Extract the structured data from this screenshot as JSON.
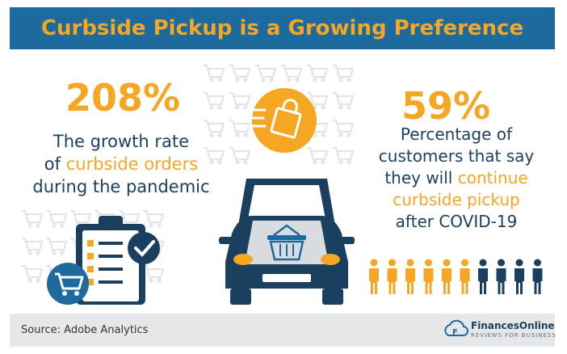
{
  "header": {
    "title": "Curbside Pickup is a Growing Preference"
  },
  "left_stat": {
    "value": "208%",
    "line1": "The growth rate",
    "line2_pre": "of ",
    "line2_highlight": "curbside orders",
    "line3": "during the pandemic"
  },
  "right_stat": {
    "value": "59%",
    "line1": "Percentage of",
    "line2": "customers that say",
    "line3_pre": "they will ",
    "line3_highlight": "continue",
    "line4_highlight": "curbside pickup",
    "line5": "after COVID-19"
  },
  "people_chart": {
    "total": 10,
    "highlighted": 6
  },
  "footer": {
    "source": "Source: Adobe Analytics",
    "brand_name": "FinancesOnline",
    "brand_tagline": "REVIEWS FOR BUSINESS"
  },
  "colors": {
    "navy": "#1b3f5e",
    "blue": "#1c6a9e",
    "orange": "#f5a623",
    "light_gray": "#e6e7e8"
  },
  "icons": [
    "shopping-cart-icon",
    "shopping-bag-icon",
    "checklist-icon",
    "checkmark-icon",
    "car-icon",
    "basket-icon",
    "person-icon",
    "financesonline-logo-icon"
  ]
}
